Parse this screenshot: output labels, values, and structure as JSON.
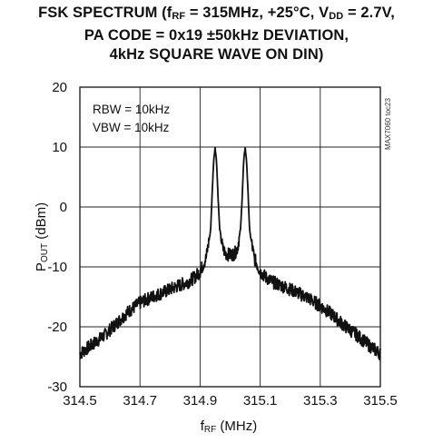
{
  "chart_data": {
    "type": "line",
    "title": {
      "line1_pre": "FSK SPECTRUM (f",
      "line1_sub1": "RF",
      "line1_mid": " = 315MHz, +25°C, V",
      "line1_sub2": "DD",
      "line1_post": " = 2.7V,",
      "line2": "PA CODE = 0x19 ±50kHz DEVIATION,",
      "line3": "4kHz SQUARE WAVE ON DIN)"
    },
    "xlabel": {
      "main": "f",
      "sub": "RF",
      "unit": " (MHz)"
    },
    "ylabel": {
      "main": "P",
      "sub": "OUT",
      "unit": " (dBm)"
    },
    "xlim": [
      314.5,
      315.5
    ],
    "ylim": [
      -30,
      20
    ],
    "xticks": [
      "314.5",
      "314.7",
      "314.9",
      "315.1",
      "315.3",
      "315.5"
    ],
    "yticks": [
      "20",
      "10",
      "0",
      "-10",
      "-20",
      "-30"
    ],
    "grid": true,
    "annotations": [
      "RBW = 10kHz",
      "VBW = 10kHz"
    ],
    "side_label": "MAX7060 toc23",
    "series": [
      {
        "x": [
          314.5,
          314.54,
          314.58,
          314.62,
          314.66,
          314.7,
          314.74,
          314.78,
          314.82,
          314.86,
          314.88,
          314.9,
          314.92,
          314.935,
          314.94,
          314.945,
          314.95,
          314.955,
          314.96,
          314.965,
          314.975,
          314.985,
          315.0,
          315.015,
          315.025,
          315.035,
          315.04,
          315.045,
          315.05,
          315.055,
          315.06,
          315.065,
          315.08,
          315.1,
          315.12,
          315.14,
          315.18,
          315.22,
          315.26,
          315.3,
          315.34,
          315.38,
          315.42,
          315.46,
          315.5
        ],
        "values": [
          -24.5,
          -23.0,
          -21.5,
          -19.5,
          -17.5,
          -16.0,
          -15.0,
          -14.2,
          -13.3,
          -12.5,
          -11.8,
          -10.8,
          -8.5,
          -4.0,
          2.0,
          7.5,
          10.0,
          7.5,
          1.5,
          -3.5,
          -6.8,
          -7.8,
          -8.0,
          -7.8,
          -6.8,
          -3.5,
          1.5,
          7.5,
          10.0,
          7.5,
          2.0,
          -4.0,
          -8.5,
          -10.8,
          -11.8,
          -12.5,
          -13.3,
          -14.2,
          -15.2,
          -16.5,
          -18.0,
          -19.8,
          -21.3,
          -23.0,
          -24.5
        ]
      }
    ]
  }
}
